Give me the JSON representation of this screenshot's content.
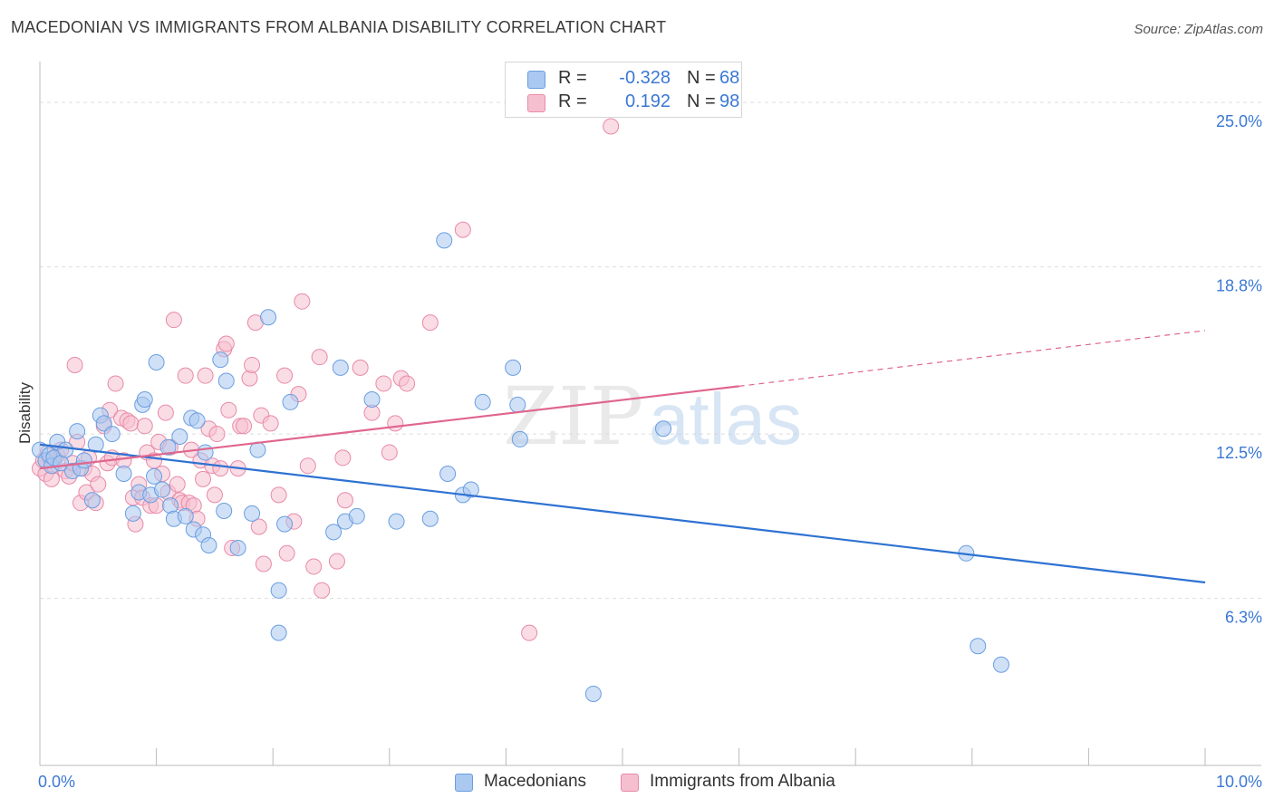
{
  "title": "MACEDONIAN VS IMMIGRANTS FROM ALBANIA DISABILITY CORRELATION CHART",
  "source": "Source: ZipAtlas.com",
  "watermark": {
    "zip": "ZIP",
    "atlas": "atlas"
  },
  "colors": {
    "blue_fill": "#aac8f0",
    "blue_stroke": "#6a9ee0",
    "blue_line": "#2e72d2",
    "pink_fill": "#f6bfd0",
    "pink_stroke": "#e88aa8",
    "pink_line": "#e0668e",
    "value_text": "#3b78d4",
    "grid": "#dddddd"
  },
  "legend_top": {
    "rows": [
      {
        "r_label": "R =",
        "r_value": "-0.328",
        "n_label": "N =",
        "n_value": "68"
      },
      {
        "r_label": "R =",
        "r_value": "0.192",
        "n_label": "N =",
        "n_value": "98"
      }
    ]
  },
  "legend_bottom": {
    "series1": "Macedonians",
    "series2": "Immigrants from Albania"
  },
  "chart_data": {
    "type": "scatter",
    "title": "MACEDONIAN VS IMMIGRANTS FROM ALBANIA DISABILITY CORRELATION CHART",
    "ylabel": "Disability",
    "xlabel": "",
    "xlim": [
      0,
      10
    ],
    "ylim": [
      0,
      26.2
    ],
    "x_ticks": [
      0,
      10
    ],
    "x_tick_labels": [
      "0.0%",
      "10.0%"
    ],
    "y_ticks": [
      6.3,
      12.5,
      18.8,
      25.0
    ],
    "y_tick_labels": [
      "6.3%",
      "12.5%",
      "18.8%",
      "25.0%"
    ],
    "grid": "horizontal dashed",
    "legend_placement": "top-center and bottom",
    "series": [
      {
        "name": "Macedonians",
        "color": "blue",
        "r": -0.328,
        "n": 68,
        "trend": {
          "x0": 0.0,
          "y0": 12.1,
          "x1": 10.0,
          "y1": 6.9
        },
        "points": [
          [
            0.0,
            11.9
          ],
          [
            0.05,
            11.5
          ],
          [
            0.08,
            11.7
          ],
          [
            0.1,
            11.3
          ],
          [
            0.12,
            11.6
          ],
          [
            0.15,
            12.2
          ],
          [
            0.18,
            11.4
          ],
          [
            0.22,
            11.9
          ],
          [
            0.28,
            11.1
          ],
          [
            0.32,
            12.6
          ],
          [
            0.35,
            11.2
          ],
          [
            0.38,
            11.5
          ],
          [
            0.45,
            10.0
          ],
          [
            0.48,
            12.1
          ],
          [
            0.52,
            13.2
          ],
          [
            0.55,
            12.9
          ],
          [
            0.62,
            12.5
          ],
          [
            0.72,
            11.0
          ],
          [
            0.8,
            9.5
          ],
          [
            0.85,
            10.3
          ],
          [
            0.88,
            13.6
          ],
          [
            0.9,
            13.8
          ],
          [
            0.95,
            10.2
          ],
          [
            0.98,
            10.9
          ],
          [
            1.0,
            15.2
          ],
          [
            1.05,
            10.4
          ],
          [
            1.1,
            12.0
          ],
          [
            1.12,
            9.8
          ],
          [
            1.15,
            9.3
          ],
          [
            1.2,
            12.4
          ],
          [
            1.25,
            9.4
          ],
          [
            1.3,
            13.1
          ],
          [
            1.32,
            8.9
          ],
          [
            1.35,
            13.0
          ],
          [
            1.4,
            8.7
          ],
          [
            1.42,
            11.8
          ],
          [
            1.45,
            8.3
          ],
          [
            1.55,
            15.3
          ],
          [
            1.58,
            9.6
          ],
          [
            1.6,
            14.5
          ],
          [
            1.7,
            8.2
          ],
          [
            1.82,
            9.5
          ],
          [
            1.87,
            11.9
          ],
          [
            1.96,
            16.9
          ],
          [
            2.05,
            6.6
          ],
          [
            2.1,
            9.1
          ],
          [
            2.15,
            13.7
          ],
          [
            2.05,
            5.0
          ],
          [
            2.52,
            8.8
          ],
          [
            2.58,
            15.0
          ],
          [
            2.62,
            9.2
          ],
          [
            2.72,
            9.4
          ],
          [
            2.85,
            13.8
          ],
          [
            3.06,
            9.2
          ],
          [
            3.35,
            9.3
          ],
          [
            3.47,
            19.8
          ],
          [
            3.5,
            11.0
          ],
          [
            3.63,
            10.2
          ],
          [
            3.7,
            10.4
          ],
          [
            3.8,
            13.7
          ],
          [
            4.06,
            15.0
          ],
          [
            4.1,
            13.6
          ],
          [
            4.12,
            12.3
          ],
          [
            4.75,
            2.7
          ],
          [
            5.35,
            12.7
          ],
          [
            7.95,
            8.0
          ],
          [
            8.05,
            4.5
          ],
          [
            8.25,
            3.8
          ]
        ]
      },
      {
        "name": "Immigrants from Albania",
        "color": "pink",
        "r": 0.192,
        "n": 98,
        "trend": {
          "x0": 0.0,
          "y0": 11.2,
          "x1": 6.0,
          "y1": 14.3,
          "dash_to_x": 10.0,
          "dash_to_y": 16.4
        },
        "points": [
          [
            0.0,
            11.2
          ],
          [
            0.03,
            11.5
          ],
          [
            0.05,
            11.0
          ],
          [
            0.07,
            11.8
          ],
          [
            0.1,
            10.8
          ],
          [
            0.12,
            11.3
          ],
          [
            0.15,
            11.7
          ],
          [
            0.18,
            11.9
          ],
          [
            0.22,
            11.1
          ],
          [
            0.25,
            10.9
          ],
          [
            0.28,
            11.4
          ],
          [
            0.3,
            15.1
          ],
          [
            0.32,
            12.2
          ],
          [
            0.35,
            9.9
          ],
          [
            0.38,
            11.2
          ],
          [
            0.4,
            10.3
          ],
          [
            0.42,
            11.6
          ],
          [
            0.45,
            11.0
          ],
          [
            0.48,
            9.9
          ],
          [
            0.5,
            10.6
          ],
          [
            0.55,
            12.8
          ],
          [
            0.58,
            11.4
          ],
          [
            0.6,
            13.4
          ],
          [
            0.62,
            11.6
          ],
          [
            0.65,
            14.4
          ],
          [
            0.7,
            13.1
          ],
          [
            0.72,
            11.5
          ],
          [
            0.75,
            13.0
          ],
          [
            0.78,
            12.9
          ],
          [
            0.8,
            10.1
          ],
          [
            0.82,
            9.1
          ],
          [
            0.85,
            10.6
          ],
          [
            0.88,
            10.1
          ],
          [
            0.9,
            12.8
          ],
          [
            0.92,
            11.8
          ],
          [
            0.95,
            9.8
          ],
          [
            0.98,
            11.5
          ],
          [
            1.0,
            9.8
          ],
          [
            1.02,
            12.2
          ],
          [
            1.05,
            11.0
          ],
          [
            1.08,
            13.3
          ],
          [
            1.1,
            10.3
          ],
          [
            1.12,
            12.0
          ],
          [
            1.15,
            16.8
          ],
          [
            1.18,
            10.6
          ],
          [
            1.2,
            10.0
          ],
          [
            1.22,
            9.9
          ],
          [
            1.25,
            14.7
          ],
          [
            1.28,
            9.9
          ],
          [
            1.3,
            11.9
          ],
          [
            1.32,
            9.8
          ],
          [
            1.35,
            9.3
          ],
          [
            1.38,
            11.5
          ],
          [
            1.4,
            10.8
          ],
          [
            1.42,
            14.7
          ],
          [
            1.45,
            12.7
          ],
          [
            1.48,
            11.3
          ],
          [
            1.5,
            10.2
          ],
          [
            1.52,
            12.5
          ],
          [
            1.55,
            11.2
          ],
          [
            1.58,
            15.7
          ],
          [
            1.6,
            15.9
          ],
          [
            1.62,
            13.4
          ],
          [
            1.65,
            8.2
          ],
          [
            1.7,
            11.2
          ],
          [
            1.72,
            12.8
          ],
          [
            1.75,
            12.8
          ],
          [
            1.8,
            14.6
          ],
          [
            1.82,
            15.1
          ],
          [
            1.85,
            16.7
          ],
          [
            1.88,
            9.0
          ],
          [
            1.9,
            13.2
          ],
          [
            1.92,
            7.6
          ],
          [
            1.98,
            12.9
          ],
          [
            2.05,
            10.2
          ],
          [
            2.1,
            14.7
          ],
          [
            2.12,
            8.0
          ],
          [
            2.18,
            9.2
          ],
          [
            2.22,
            14.0
          ],
          [
            2.25,
            17.5
          ],
          [
            2.3,
            11.3
          ],
          [
            2.35,
            7.5
          ],
          [
            2.4,
            15.4
          ],
          [
            2.42,
            6.6
          ],
          [
            2.55,
            7.7
          ],
          [
            2.6,
            11.6
          ],
          [
            2.62,
            10.0
          ],
          [
            2.75,
            15.0
          ],
          [
            2.85,
            13.3
          ],
          [
            2.95,
            14.4
          ],
          [
            3.0,
            11.8
          ],
          [
            3.05,
            12.9
          ],
          [
            3.1,
            14.6
          ],
          [
            3.15,
            14.4
          ],
          [
            3.35,
            16.7
          ],
          [
            3.63,
            20.2
          ],
          [
            4.2,
            5.0
          ],
          [
            4.9,
            24.1
          ]
        ]
      }
    ]
  }
}
